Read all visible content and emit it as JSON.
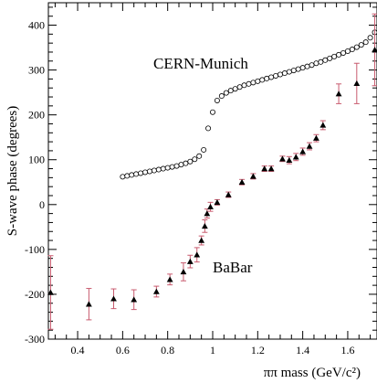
{
  "chart_data": {
    "type": "scatter",
    "xlabel": "ππ mass  (GeV/c²)",
    "ylabel": "S-wave phase  (degrees)",
    "xlim": [
      0.27,
      1.73
    ],
    "ylim": [
      -300,
      450
    ],
    "xticks": [
      0.4,
      0.6,
      0.8,
      1,
      1.2,
      1.4,
      1.6
    ],
    "xtick_labels": [
      "0.4",
      "0.6",
      "0.8",
      "1",
      "1.2",
      "1.4",
      "1.6"
    ],
    "yticks": [
      -300,
      -200,
      -100,
      0,
      100,
      200,
      300,
      400
    ],
    "ytick_labels": [
      "-300",
      "-200",
      "-100",
      "0",
      "100",
      "200",
      "300",
      "400"
    ],
    "grid": false,
    "annotations": [
      {
        "text": "CERN-Munich",
        "x": 1.2,
        "y": 325
      },
      {
        "text": "BaBar",
        "x": 0.97,
        "y": -140
      }
    ],
    "series": [
      {
        "name": "CERN-Munich",
        "marker": "open-circle",
        "color": "#000000",
        "points": [
          [
            0.6,
            62
          ],
          [
            0.62,
            64
          ],
          [
            0.64,
            66
          ],
          [
            0.66,
            68
          ],
          [
            0.68,
            70
          ],
          [
            0.7,
            72
          ],
          [
            0.72,
            74
          ],
          [
            0.74,
            76
          ],
          [
            0.76,
            78
          ],
          [
            0.78,
            80
          ],
          [
            0.8,
            82
          ],
          [
            0.82,
            84
          ],
          [
            0.84,
            86
          ],
          [
            0.86,
            89
          ],
          [
            0.88,
            92
          ],
          [
            0.9,
            96
          ],
          [
            0.92,
            101
          ],
          [
            0.94,
            108
          ],
          [
            0.96,
            122
          ],
          [
            0.98,
            170
          ],
          [
            1.0,
            206
          ],
          [
            1.02,
            232
          ],
          [
            1.04,
            242
          ],
          [
            1.06,
            249
          ],
          [
            1.08,
            254
          ],
          [
            1.1,
            258
          ],
          [
            1.12,
            262
          ],
          [
            1.14,
            266
          ],
          [
            1.16,
            269
          ],
          [
            1.18,
            272
          ],
          [
            1.2,
            275
          ],
          [
            1.22,
            278
          ],
          [
            1.24,
            281
          ],
          [
            1.26,
            284
          ],
          [
            1.28,
            287
          ],
          [
            1.3,
            290
          ],
          [
            1.32,
            293
          ],
          [
            1.34,
            296
          ],
          [
            1.36,
            299
          ],
          [
            1.38,
            302
          ],
          [
            1.4,
            305
          ],
          [
            1.42,
            308
          ],
          [
            1.44,
            311
          ],
          [
            1.46,
            315
          ],
          [
            1.48,
            318
          ],
          [
            1.5,
            322
          ],
          [
            1.52,
            326
          ],
          [
            1.54,
            330
          ],
          [
            1.56,
            334
          ],
          [
            1.58,
            338
          ],
          [
            1.6,
            342
          ],
          [
            1.62,
            346
          ],
          [
            1.64,
            351
          ],
          [
            1.66,
            356
          ],
          [
            1.68,
            362
          ],
          [
            1.7,
            372
          ],
          [
            1.72,
            384
          ]
        ]
      },
      {
        "name": "BaBar",
        "marker": "filled-triangle",
        "color": "#000000",
        "error_color": "#c85a6e",
        "points": [
          {
            "x": 0.28,
            "y": -196,
            "err": 82
          },
          {
            "x": 0.45,
            "y": -222,
            "err": 35
          },
          {
            "x": 0.56,
            "y": -210,
            "err": 22
          },
          {
            "x": 0.65,
            "y": -212,
            "err": 22
          },
          {
            "x": 0.75,
            "y": -194,
            "err": 12
          },
          {
            "x": 0.81,
            "y": -167,
            "err": 12
          },
          {
            "x": 0.87,
            "y": -150,
            "err": 20
          },
          {
            "x": 0.9,
            "y": -127,
            "err": 14
          },
          {
            "x": 0.93,
            "y": -112,
            "err": 16
          },
          {
            "x": 0.95,
            "y": -80,
            "err": 10
          },
          {
            "x": 0.965,
            "y": -48,
            "err": 14
          },
          {
            "x": 0.975,
            "y": -20,
            "err": 10
          },
          {
            "x": 0.99,
            "y": -5,
            "err": 10
          },
          {
            "x": 1.02,
            "y": 5,
            "err": 6
          },
          {
            "x": 1.07,
            "y": 22,
            "err": 6
          },
          {
            "x": 1.13,
            "y": 50,
            "err": 6
          },
          {
            "x": 1.18,
            "y": 63,
            "err": 6
          },
          {
            "x": 1.23,
            "y": 80,
            "err": 6
          },
          {
            "x": 1.26,
            "y": 80,
            "err": 6
          },
          {
            "x": 1.31,
            "y": 102,
            "err": 6
          },
          {
            "x": 1.34,
            "y": 99,
            "err": 8
          },
          {
            "x": 1.37,
            "y": 106,
            "err": 8
          },
          {
            "x": 1.4,
            "y": 118,
            "err": 8
          },
          {
            "x": 1.43,
            "y": 130,
            "err": 8
          },
          {
            "x": 1.46,
            "y": 148,
            "err": 8
          },
          {
            "x": 1.49,
            "y": 177,
            "err": 10
          },
          {
            "x": 1.56,
            "y": 247,
            "err": 22
          },
          {
            "x": 1.64,
            "y": 270,
            "err": 45
          },
          {
            "x": 1.72,
            "y": 345,
            "err": 80
          }
        ]
      }
    ]
  }
}
